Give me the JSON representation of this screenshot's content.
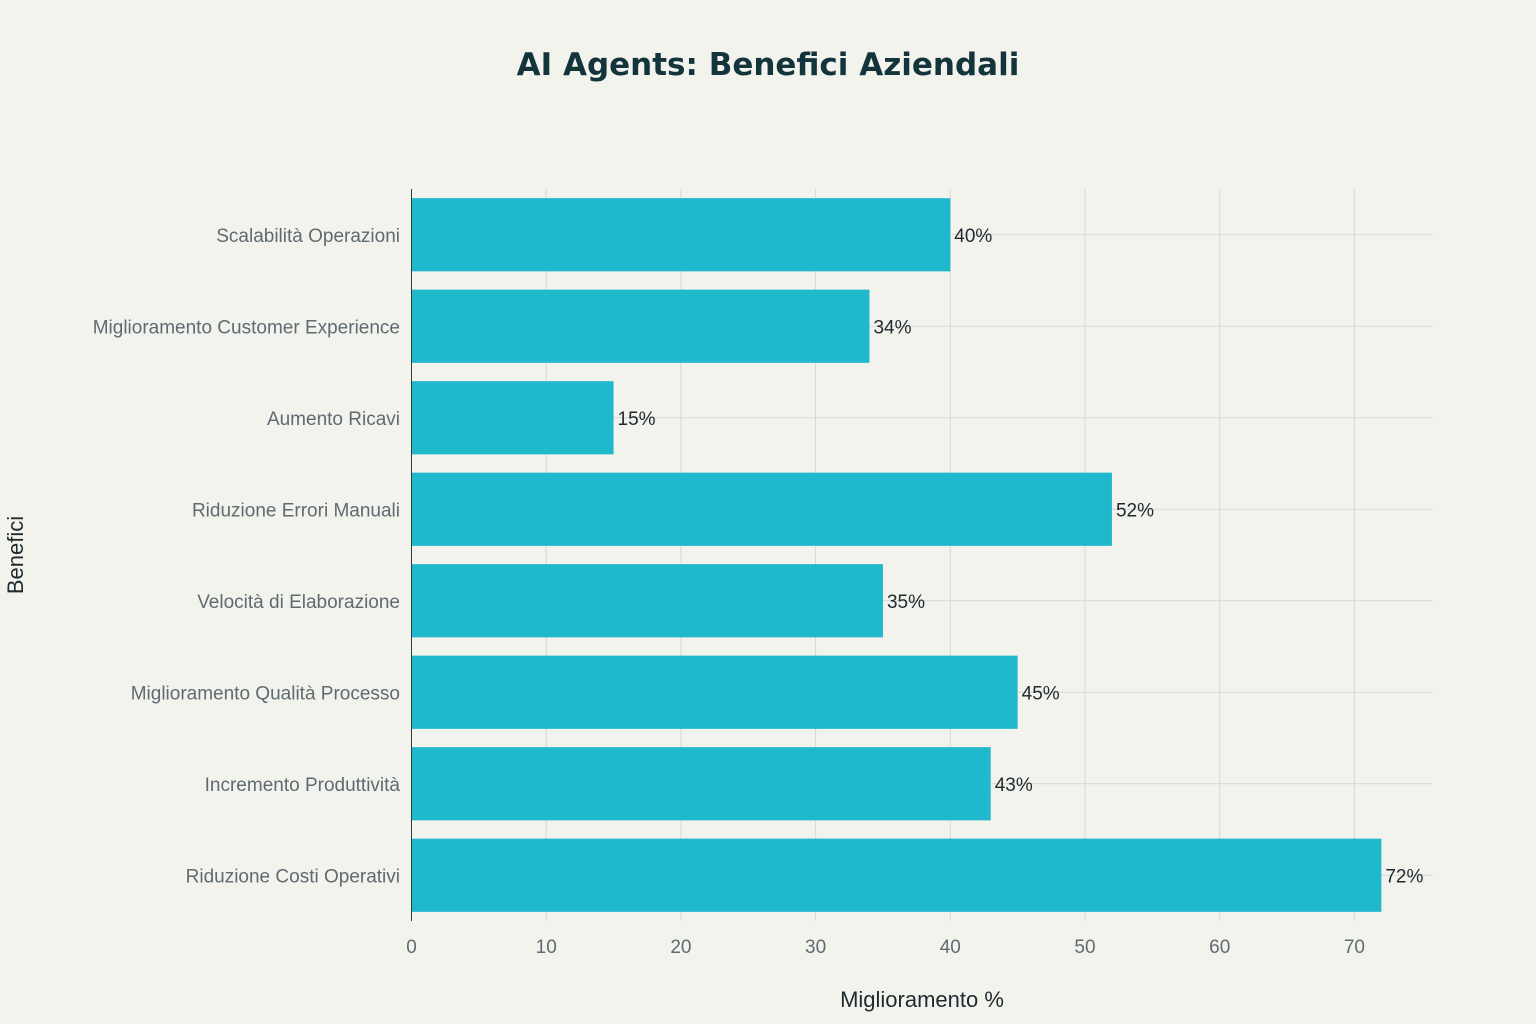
{
  "chart_data": {
    "type": "bar",
    "orientation": "horizontal",
    "title": "AI Agents: Benefici Aziendali",
    "xlabel": "Miglioramento %",
    "ylabel": "Benefici",
    "categories": [
      "Scalabilità Operazioni",
      "Miglioramento Customer Experience",
      "Aumento Ricavi",
      "Riduzione Errori Manuali",
      "Velocità di Elaborazione",
      "Miglioramento Qualità Processo",
      "Incremento Produttività",
      "Riduzione Costi Operativi"
    ],
    "values": [
      40,
      34,
      15,
      52,
      35,
      45,
      43,
      72
    ],
    "data_labels": [
      "40%",
      "34%",
      "15%",
      "52%",
      "35%",
      "45%",
      "43%",
      "72%"
    ],
    "x_ticks": [
      0,
      10,
      20,
      30,
      40,
      50,
      60,
      70
    ],
    "xlim": [
      0,
      75.8
    ],
    "grid": true,
    "bar_color": "#1fb8cd"
  }
}
